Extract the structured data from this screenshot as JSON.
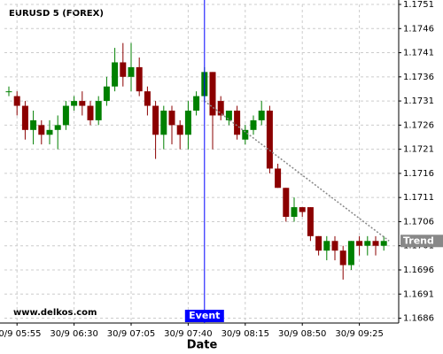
{
  "chart_data": {
    "type": "candlestick",
    "title": "EURUSD 5 (FOREX)",
    "watermark": "www.delkos.com",
    "x_label": "Date",
    "categories": [
      null,
      "30/9 05:55",
      null,
      null,
      null,
      null,
      null,
      null,
      "30/9 06:30",
      null,
      null,
      null,
      null,
      null,
      null,
      "30/9 07:05",
      null,
      null,
      null,
      null,
      null,
      null,
      "30/9 07:40",
      null,
      null,
      null,
      null,
      null,
      null,
      "30/9 08:15",
      null,
      null,
      null,
      null,
      null,
      null,
      "30/9 08:50",
      null,
      null,
      null,
      null,
      null,
      null,
      "30/9 09:25",
      null,
      null,
      null
    ],
    "open": [
      1.1733,
      1.1732,
      1.173,
      1.1725,
      1.1726,
      1.1724,
      1.1725,
      1.1726,
      1.173,
      1.1731,
      1.173,
      1.1727,
      1.1731,
      1.1734,
      1.1739,
      1.1736,
      1.1738,
      1.1733,
      1.173,
      1.1724,
      1.1729,
      1.1726,
      1.1724,
      1.1729,
      1.1732,
      1.1737,
      1.1731,
      1.1727,
      1.1729,
      1.1723,
      1.1725,
      1.1727,
      1.1729,
      1.1717,
      1.1713,
      1.1707,
      1.1709,
      1.1709,
      1.1703,
      1.17,
      1.1702,
      1.17,
      1.1697,
      1.1702,
      1.1701,
      1.1702,
      1.1701
    ],
    "high": [
      1.1734,
      1.1733,
      1.1731,
      1.1729,
      1.1727,
      1.1727,
      1.1728,
      1.1731,
      1.1732,
      1.1733,
      1.1731,
      1.1732,
      1.1736,
      1.1742,
      1.1743,
      1.1743,
      1.174,
      1.1734,
      1.1731,
      1.173,
      1.173,
      1.1727,
      1.1731,
      1.1733,
      1.1738,
      1.1737,
      1.1732,
      1.1729,
      1.173,
      1.1726,
      1.1728,
      1.1731,
      1.173,
      1.1718,
      1.1713,
      1.1711,
      1.1709,
      1.1709,
      1.1703,
      1.1703,
      1.1703,
      1.1701,
      1.1702,
      1.1703,
      1.1703,
      1.1703,
      1.1703
    ],
    "low": [
      1.1732,
      1.1728,
      1.1723,
      1.1722,
      1.1722,
      1.1722,
      1.1721,
      1.1725,
      1.1729,
      1.1728,
      1.1726,
      1.1726,
      1.173,
      1.1733,
      1.1734,
      1.1733,
      1.1732,
      1.1728,
      1.1719,
      1.1721,
      1.1722,
      1.1721,
      1.1721,
      1.1728,
      1.1731,
      1.1721,
      1.1727,
      1.1726,
      1.1723,
      1.1722,
      1.1724,
      1.1726,
      1.1716,
      1.1713,
      1.1706,
      1.1706,
      1.1707,
      1.1702,
      1.1699,
      1.1698,
      1.1698,
      1.1694,
      1.1696,
      1.1699,
      1.1699,
      1.1699,
      1.17
    ],
    "close": [
      1.1733,
      1.173,
      1.1725,
      1.1727,
      1.1724,
      1.1725,
      1.1726,
      1.173,
      1.1731,
      1.173,
      1.1727,
      1.1731,
      1.1734,
      1.1739,
      1.1736,
      1.1738,
      1.1733,
      1.173,
      1.1724,
      1.1729,
      1.1726,
      1.1724,
      1.1729,
      1.1732,
      1.1737,
      1.1728,
      1.1728,
      1.1729,
      1.1724,
      1.1725,
      1.1727,
      1.1729,
      1.1717,
      1.1713,
      1.1707,
      1.1709,
      1.1708,
      1.1703,
      1.17,
      1.1702,
      1.17,
      1.1697,
      1.1702,
      1.1701,
      1.1702,
      1.1701,
      1.1702
    ],
    "up_color": "#008000",
    "down_color": "#8b0000",
    "ylim": [
      1.1685,
      1.1751
    ],
    "yticks": [
      1.1686,
      1.1691,
      1.1696,
      1.1701,
      1.1706,
      1.1711,
      1.1716,
      1.1721,
      1.1726,
      1.1731,
      1.1736,
      1.1741,
      1.1746,
      1.1751
    ],
    "grid": true,
    "event": {
      "index": 24,
      "label": "Event",
      "color": "#0000ff"
    },
    "trend": {
      "label": "Trend",
      "start_index": 24,
      "start_value": 1.1731,
      "end_index": 46,
      "end_value": 1.1702,
      "color": "#888888"
    }
  }
}
